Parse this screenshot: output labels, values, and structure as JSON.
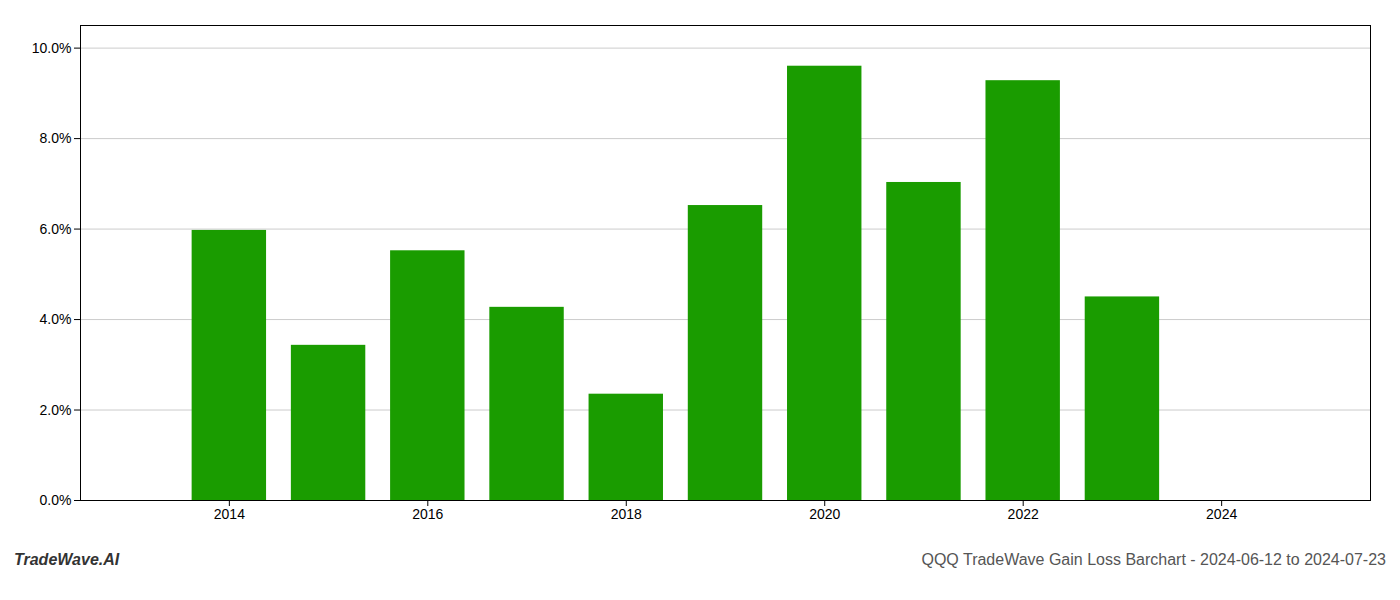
{
  "chart_data": {
    "type": "bar",
    "title": "QQQ TradeWave Gain Loss Barchart - 2024-06-12 to 2024-07-23",
    "annotations": [
      "TradeWave.AI"
    ],
    "x": [
      2014,
      2015,
      2016,
      2017,
      2018,
      2019,
      2020,
      2021,
      2022,
      2023
    ],
    "values": [
      0.0597,
      0.0343,
      0.0552,
      0.0427,
      0.0235,
      0.0652,
      0.096,
      0.0703,
      0.0928,
      0.045
    ],
    "color": "#1a9c00",
    "xlim": [
      2012.5,
      2025.5
    ],
    "xticks": [
      2014,
      2016,
      2018,
      2020,
      2022,
      2024
    ],
    "ylim": [
      0.0,
      0.105
    ],
    "yticks": [
      {
        "value": 0.0,
        "label": "0.0%"
      },
      {
        "value": 0.02,
        "label": "2.0%"
      },
      {
        "value": 0.04,
        "label": "4.0%"
      },
      {
        "value": 0.06,
        "label": "6.0%"
      },
      {
        "value": 0.08,
        "label": "8.0%"
      },
      {
        "value": 0.1,
        "label": "10.0%"
      }
    ],
    "grid": "y"
  }
}
